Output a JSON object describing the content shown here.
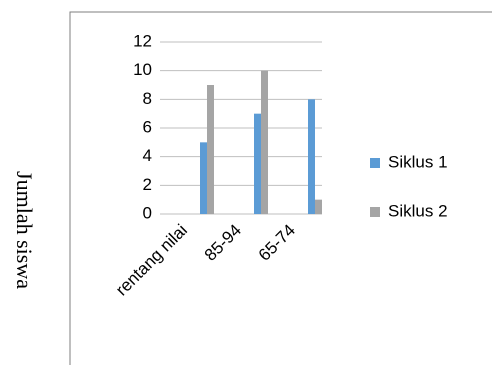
{
  "chart_data": {
    "type": "bar",
    "y_label": "Jumlah siswa",
    "categories": [
      "rentang nilai",
      "85-94",
      "65-74"
    ],
    "series": [
      {
        "name": "Siklus 1",
        "color": "#5b9bd5",
        "values": [
          5,
          7,
          8
        ]
      },
      {
        "name": "Siklus 2",
        "color": "#a5a5a5",
        "values": [
          9,
          10,
          1
        ]
      }
    ],
    "ylim": [
      0,
      12
    ],
    "yticks": [
      0,
      2,
      4,
      6,
      8,
      10,
      12
    ],
    "grid": true,
    "legend": "right"
  }
}
